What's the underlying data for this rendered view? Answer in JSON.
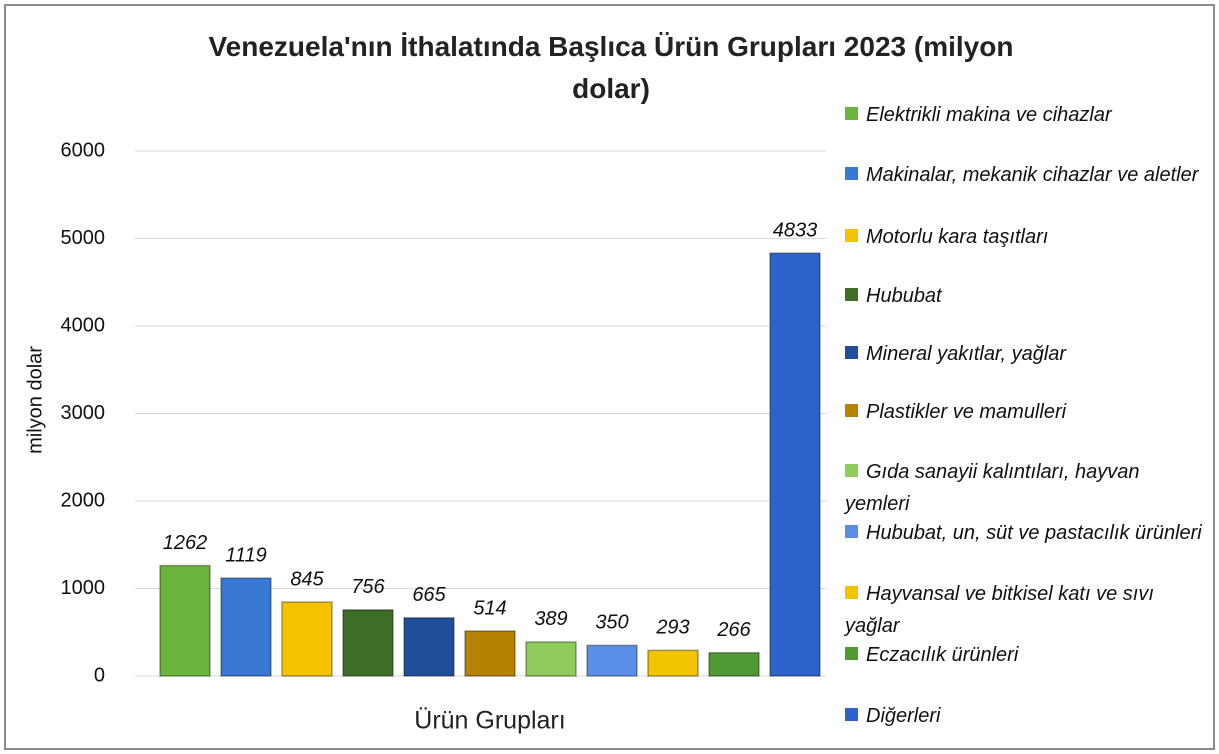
{
  "chart_data": {
    "type": "bar",
    "title": "Venezuela'nın İthalatında Başlıca Ürün Grupları 2023 (milyon dolar)",
    "x_label": "Ürün Grupları",
    "y_label": "milyon dolar",
    "categories": [
      "Elektrikli makina ve cihazlar",
      "Makinalar, mekanik cihazlar ve aletler",
      "Motorlu kara taşıtları",
      "Hububat",
      "Mineral yakıtlar, yağlar",
      "Plastikler ve mamulleri",
      "Gıda sanayii kalıntıları, hayvan yemleri",
      "Hububat, un, süt ve pastacılık ürünleri",
      "Hayvansal ve bitkisel katı ve sıvı yağlar",
      "Eczacılık ürünleri",
      "Diğerleri"
    ],
    "values": [
      1262,
      1119,
      845,
      756,
      665,
      514,
      389,
      350,
      293,
      266,
      4833
    ],
    "colors": [
      "#6ab43c",
      "#3a78d6",
      "#f5c200",
      "#3d6e27",
      "#1f4f98",
      "#b58300",
      "#8fcc5c",
      "#5b8ee6",
      "#f2c400",
      "#4f9a32",
      "#2e62cb"
    ],
    "ylim": [
      0,
      6000
    ],
    "yticks": [
      0,
      1000,
      2000,
      3000,
      4000,
      5000,
      6000
    ],
    "grid": true,
    "legend": "right"
  }
}
